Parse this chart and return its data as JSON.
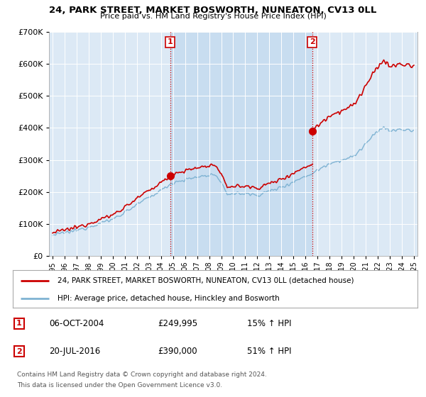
{
  "title": "24, PARK STREET, MARKET BOSWORTH, NUNEATON, CV13 0LL",
  "subtitle": "Price paid vs. HM Land Registry's House Price Index (HPI)",
  "legend_line1": "24, PARK STREET, MARKET BOSWORTH, NUNEATON, CV13 0LL (detached house)",
  "legend_line2": "HPI: Average price, detached house, Hinckley and Bosworth",
  "footer1": "Contains HM Land Registry data © Crown copyright and database right 2024.",
  "footer2": "This data is licensed under the Open Government Licence v3.0.",
  "annotation1": {
    "label": "1",
    "date": "06-OCT-2004",
    "price": "£249,995",
    "change": "15% ↑ HPI"
  },
  "annotation2": {
    "label": "2",
    "date": "20-JUL-2016",
    "price": "£390,000",
    "change": "51% ↑ HPI"
  },
  "plot_bg": "#dce9f5",
  "plot_bg_highlight": "#c8ddf0",
  "fig_bg": "#ffffff",
  "red_color": "#cc0000",
  "blue_color": "#7fb3d3",
  "ylim": [
    0,
    700000
  ],
  "yticks": [
    0,
    100000,
    200000,
    300000,
    400000,
    500000,
    600000,
    700000
  ],
  "sale1_x": 2004.76,
  "sale1_y": 249995,
  "sale2_x": 2016.55,
  "sale2_y": 390000,
  "xmin": 1995,
  "xmax": 2025
}
